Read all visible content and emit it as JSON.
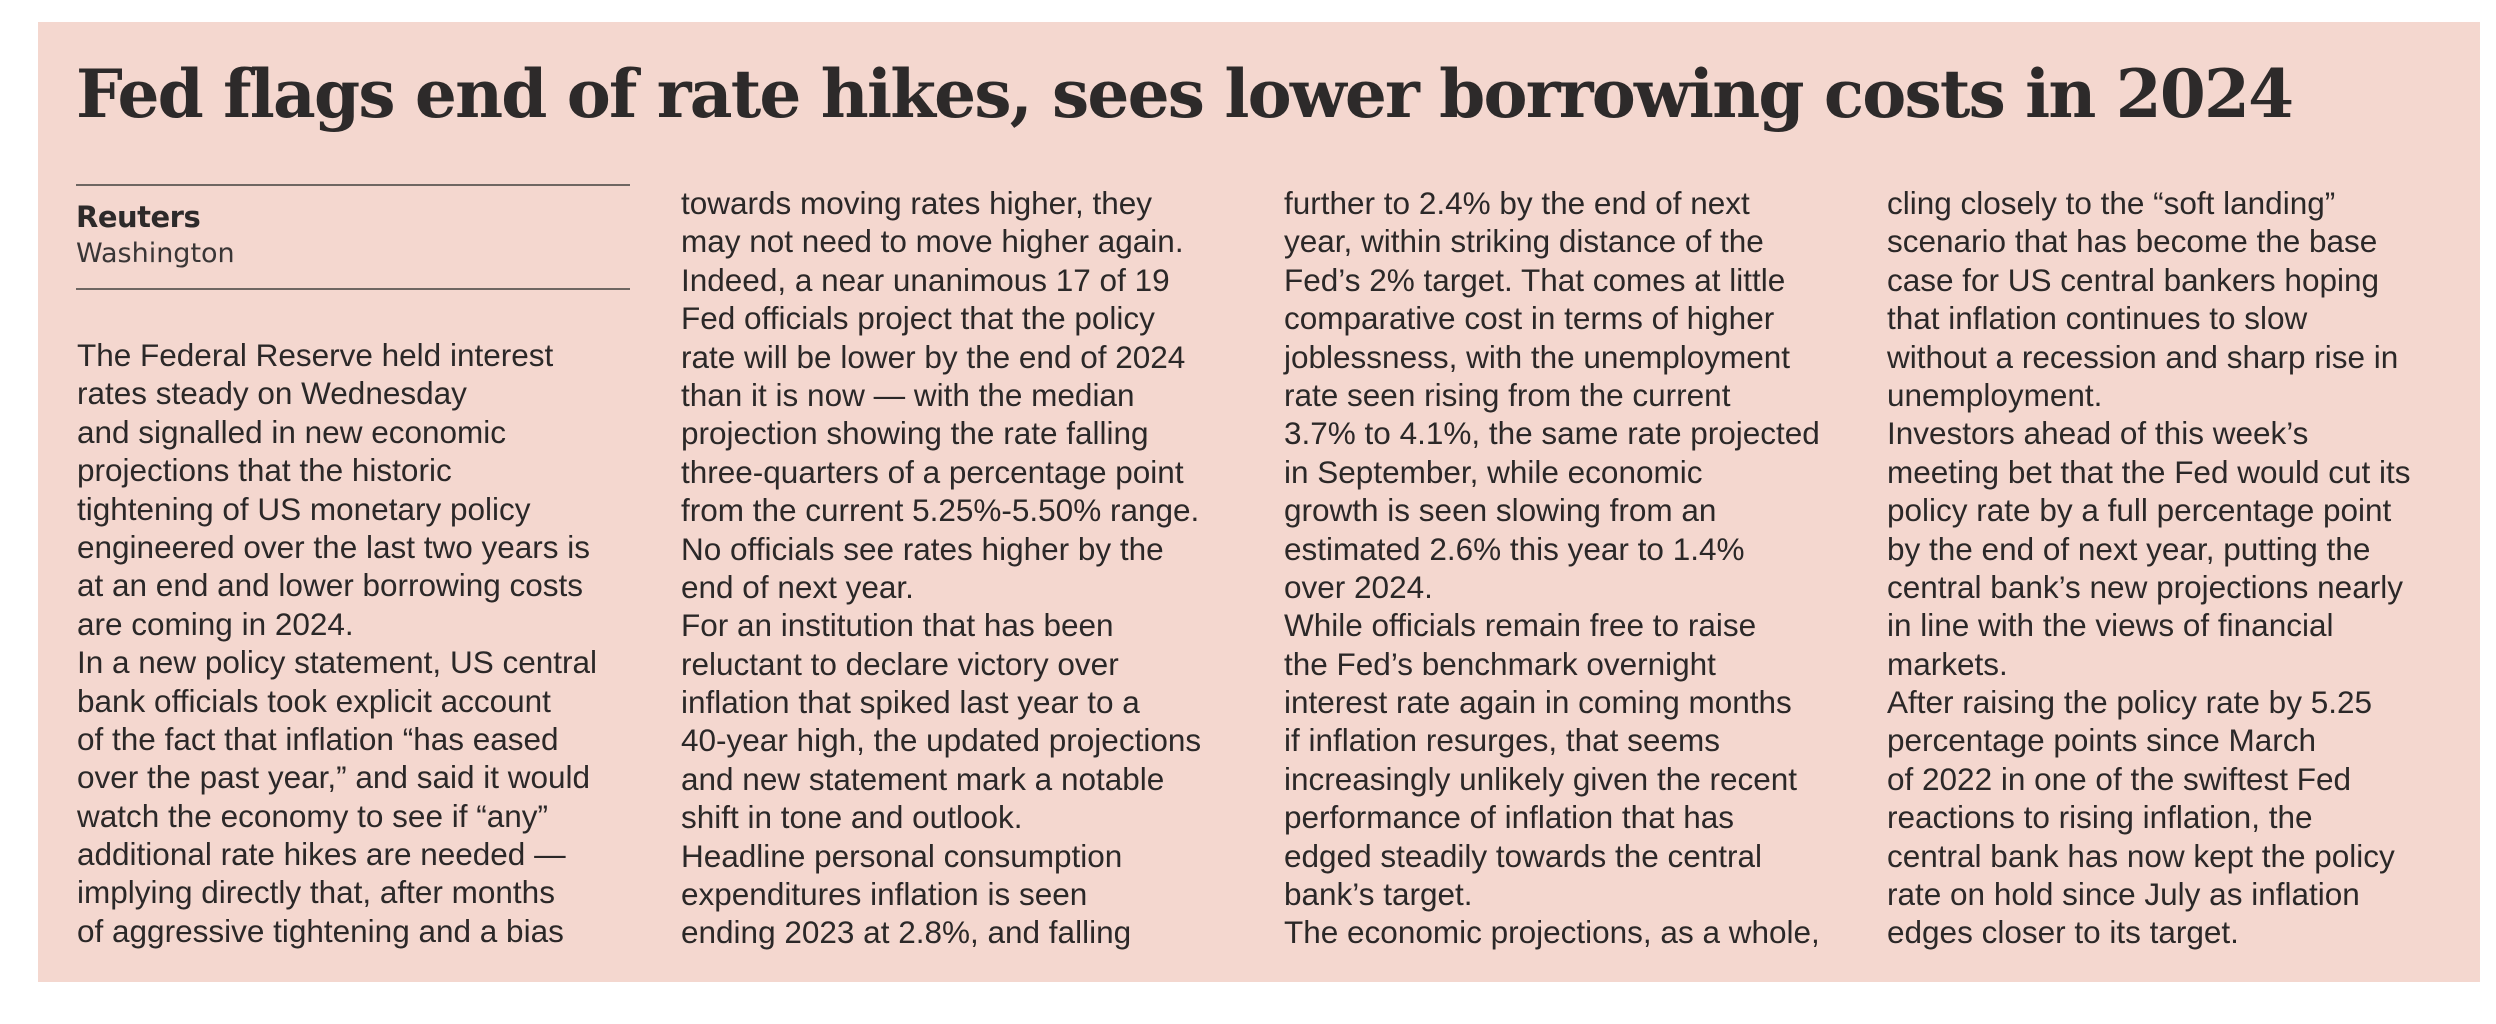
{
  "article": {
    "headline": "Fed flags end of rate hikes, sees lower borrowing costs in 2024",
    "byline": {
      "source": "Reuters",
      "location": "Washington"
    },
    "columns": [
      [
        "The Federal Reserve held interest",
        "rates steady on Wednesday",
        "and signalled in new economic",
        "projections that the historic",
        "tightening of US monetary policy",
        "engineered over the last two years is",
        "at an end and lower borrowing costs",
        "are coming in 2024.",
        "In a new policy statement, US central",
        "bank officials took explicit account",
        "of the fact that inflation “has eased",
        "over the past year,” and said it would",
        "watch the economy to see if “any”",
        "additional rate hikes are needed —",
        "implying directly that, after months",
        "of aggressive tightening and a bias"
      ],
      [
        "towards moving rates higher, they",
        "may not need to move higher again.",
        "Indeed, a near unanimous 17 of 19",
        "Fed officials project that the policy",
        "rate will be lower by the end of 2024",
        "than it is now — with the median",
        "projection showing the rate falling",
        "three-quarters of a percentage point",
        "from the current 5.25%-5.50% range.",
        "No officials see rates higher by the",
        "end of next year.",
        "For an institution that has been",
        "reluctant to declare victory over",
        "inflation that spiked last year to a",
        "40-year high, the updated projections",
        "and new statement mark a notable",
        "shift in tone and outlook.",
        "Headline personal consumption",
        "expenditures inflation is seen",
        "ending 2023 at 2.8%, and falling"
      ],
      [
        "further to 2.4% by the end of next",
        "year, within striking distance of the",
        "Fed’s 2% target. That comes at little",
        "comparative cost in terms of higher",
        "joblessness, with the unemployment",
        "rate seen rising from the current",
        "3.7% to 4.1%, the same rate projected",
        "in September, while economic",
        "growth is seen slowing from an",
        "estimated 2.6% this year to 1.4%",
        "over 2024.",
        "While officials remain free to raise",
        "the Fed’s benchmark overnight",
        "interest rate again in coming months",
        "if inflation resurges, that seems",
        "increasingly unlikely given the recent",
        "performance of inflation that has",
        "edged steadily towards the central",
        "bank’s target.",
        "The economic projections, as a whole,"
      ],
      [
        "cling closely to the “soft landing”",
        "scenario that has become the base",
        "case for US central bankers hoping",
        "that inflation continues to slow",
        "without a recession and sharp rise in",
        "unemployment.",
        "Investors ahead of this week’s",
        "meeting bet that the Fed would cut its",
        "policy rate by a full percentage point",
        "by the end of next year, putting the",
        "central bank’s new projections nearly",
        "in line with the views of financial",
        "markets.",
        "After raising the policy rate by 5.25",
        "percentage points since March",
        "of 2022 in one of the swiftest Fed",
        "reactions to rising inflation, the",
        "central bank has now kept the policy",
        "rate on hold since July as inflation",
        "edges closer to its target."
      ]
    ]
  }
}
